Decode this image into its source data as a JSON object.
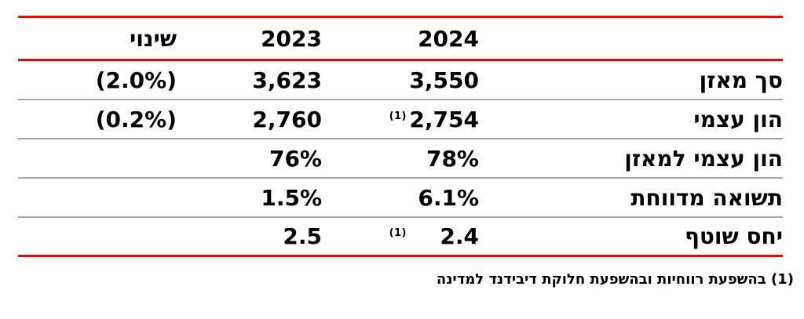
{
  "colors": {
    "rule_red": "#FF0000",
    "rule_gray": "#A8A8A8",
    "text": "#000000",
    "background": "#FFFFFF"
  },
  "table": {
    "headers": {
      "change": "שינוי",
      "y2023": "2023",
      "y2024": "2024",
      "label": ""
    },
    "rows": [
      {
        "label": "סך מאזן",
        "y2024": "3,550",
        "y2024_note": "",
        "y2023": "3,623",
        "change": "(2.0%)"
      },
      {
        "label": "הון עצמי",
        "y2024": "2,754",
        "y2024_note": "(1)",
        "y2023": "2,760",
        "change": "(0.2%)"
      },
      {
        "label": "הון עצמי למאזן",
        "y2024": "78%",
        "y2024_note": "",
        "y2023": "76%",
        "change": ""
      },
      {
        "label": "תשואה מדווחת",
        "y2024": "6.1%",
        "y2024_note": "",
        "y2023": "1.5%",
        "change": ""
      },
      {
        "label": "יחס שוטף",
        "y2024": "2.4",
        "y2024_note": "(1)",
        "y2023": "2.5",
        "change": ""
      }
    ]
  },
  "footnote": {
    "text": "(1) בהשפעת רווחיות ובהשפעת חלוקת דיבידנד למדינה"
  }
}
